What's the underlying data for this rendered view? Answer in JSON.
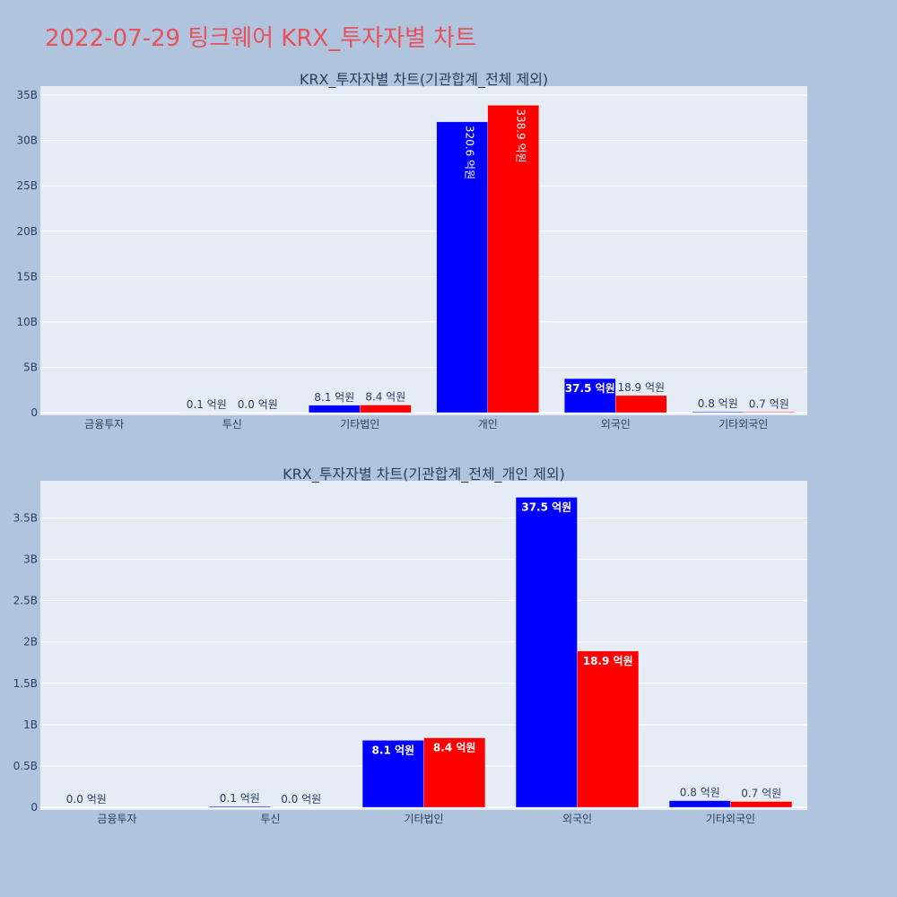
{
  "title": "2022-07-29 팅크웨어 KRX_투자자별 차트",
  "colors": {
    "buy": "#0000ff",
    "sell": "#ff0000",
    "plot_bg": "#e5ecf6",
    "page_bg": "#b0c4de",
    "title": "#e8505b"
  },
  "chart_data": [
    {
      "type": "bar",
      "title": "KRX_투자자별 차트(기관합계_전체 제외)",
      "categories": [
        "금융투자",
        "투신",
        "기타법인",
        "개인",
        "외국인",
        "기타외국인"
      ],
      "series": [
        {
          "values": [
            0,
            10000000,
            810000000,
            32060000000,
            3750000000,
            80000000
          ],
          "labels": [
            "",
            "0.1 억원",
            "8.1 억원",
            "320.6 억원",
            "37.5 억원",
            "0.8 억원"
          ]
        },
        {
          "values": [
            0,
            0,
            840000000,
            33890000000,
            1890000000,
            70000000
          ],
          "labels": [
            "",
            "0.0 억원",
            "8.4 억원",
            "338.9 억원",
            "18.9 억원",
            "0.7 억원"
          ]
        }
      ],
      "ylim": [
        0,
        36000000000
      ],
      "yticks": [
        0,
        5000000000,
        10000000000,
        15000000000,
        20000000000,
        25000000000,
        30000000000,
        35000000000
      ],
      "ytick_labels": [
        "0",
        "5B",
        "10B",
        "15B",
        "20B",
        "25B",
        "30B",
        "35B"
      ],
      "xlabel": "",
      "ylabel": "",
      "grid": true
    },
    {
      "type": "bar",
      "title": "KRX_투자자별 차트(기관합계_전체_개인 제외)",
      "categories": [
        "금융투자",
        "투신",
        "기타법인",
        "외국인",
        "기타외국인"
      ],
      "series": [
        {
          "values": [
            0,
            10000000,
            810000000,
            3750000000,
            80000000
          ],
          "labels": [
            "0.0 억원",
            "0.1 억원",
            "8.1 억원",
            "37.5 억원",
            "0.8 억원"
          ]
        },
        {
          "values": [
            0,
            0,
            840000000,
            1890000000,
            70000000
          ],
          "labels": [
            "",
            "0.0 억원",
            "8.4 억원",
            "18.9 억원",
            "0.7 억원"
          ]
        }
      ],
      "ylim": [
        0,
        3950000000
      ],
      "yticks": [
        0,
        500000000,
        1000000000,
        1500000000,
        2000000000,
        2500000000,
        3000000000,
        3500000000
      ],
      "ytick_labels": [
        "0",
        "0.5B",
        "1B",
        "1.5B",
        "2B",
        "2.5B",
        "3B",
        "3.5B"
      ],
      "xlabel": "",
      "ylabel": "",
      "grid": true
    }
  ]
}
